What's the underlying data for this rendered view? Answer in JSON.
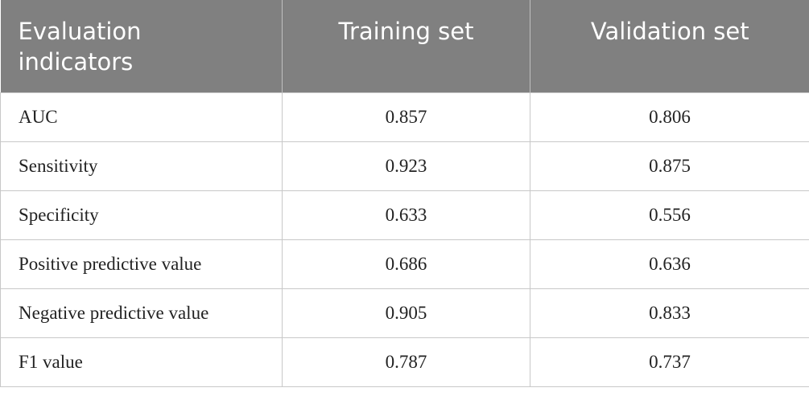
{
  "table": {
    "header": [
      "Evaluation indicators",
      "Training set",
      "Validation set"
    ],
    "rows": [
      [
        "AUC",
        "0.857",
        "0.806"
      ],
      [
        "Sensitivity",
        "0.923",
        "0.875"
      ],
      [
        "Specificity",
        "0.633",
        "0.556"
      ],
      [
        "Positive predictive value",
        "0.686",
        "0.636"
      ],
      [
        "Negative predictive value",
        "0.905",
        "0.833"
      ],
      [
        "F1 value",
        "0.787",
        "0.737"
      ]
    ]
  }
}
